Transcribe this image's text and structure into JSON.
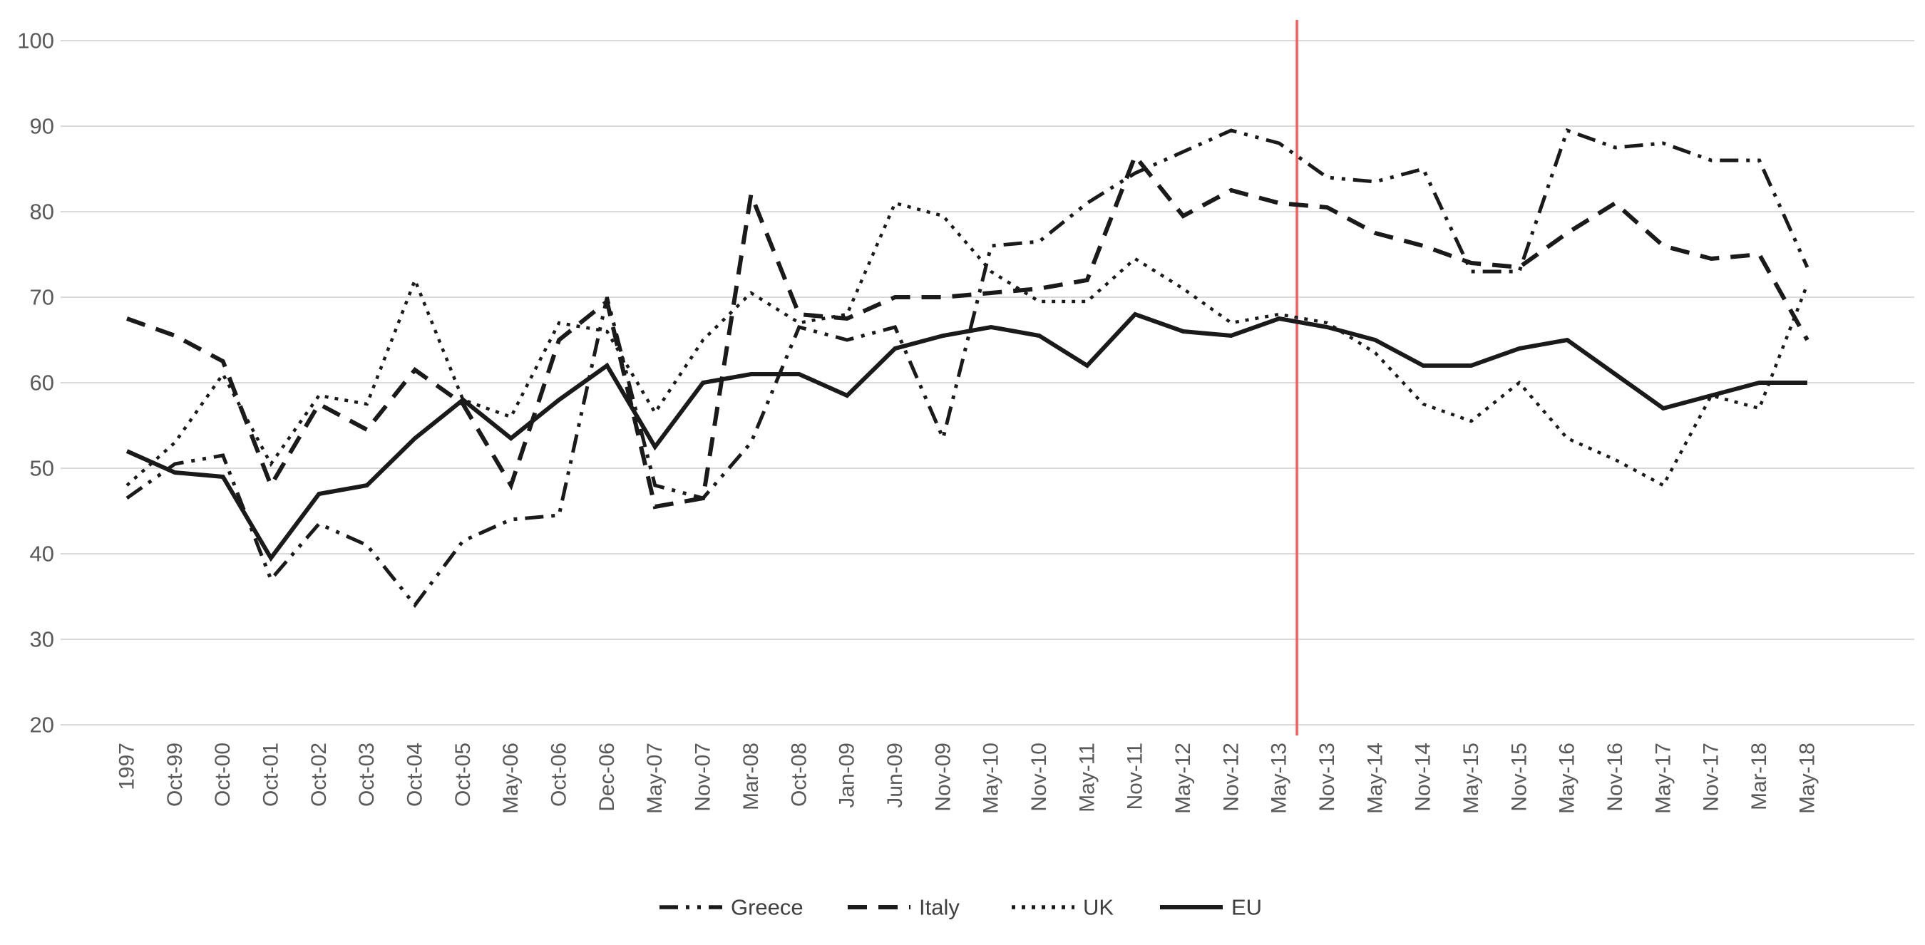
{
  "chart_data": {
    "type": "line",
    "title": "",
    "xlabel": "",
    "ylabel": "",
    "categories": [
      "1997",
      "Oct-99",
      "Oct-00",
      "Oct-01",
      "Oct-02",
      "Oct-03",
      "Oct-04",
      "Oct-05",
      "May-06",
      "Oct-06",
      "Dec-06",
      "May-07",
      "Nov-07",
      "Mar-08",
      "Oct-08",
      "Jan-09",
      "Jun-09",
      "Nov-09",
      "May-10",
      "Nov-10",
      "May-11",
      "Nov-11",
      "May-12",
      "Nov-12",
      "May-13",
      "Nov-13",
      "May-14",
      "Nov-14",
      "May-15",
      "Nov-15",
      "May-16",
      "Nov-16",
      "May-17",
      "Nov-17",
      "Mar-18",
      "May-18"
    ],
    "series": [
      {
        "name": "Greece",
        "style": "dash-dot-dot",
        "values": [
          46.5,
          50.5,
          51.5,
          37,
          43.5,
          41,
          34,
          41.5,
          44,
          44.5,
          70,
          48,
          46.5,
          53,
          66.5,
          65,
          66.5,
          53.5,
          76,
          76.5,
          81,
          84.5,
          87,
          89.5,
          88,
          84,
          83.5,
          85,
          73,
          73,
          89.5,
          87.5,
          88,
          86,
          86,
          73.5
        ]
      },
      {
        "name": "Italy",
        "style": "dashed",
        "values": [
          67.5,
          65.5,
          62.5,
          48,
          57.5,
          54.5,
          61.5,
          57.5,
          48,
          65,
          69.5,
          45.5,
          46.5,
          82,
          68,
          67.5,
          70,
          70,
          70.5,
          71,
          72,
          86.5,
          79.5,
          82.5,
          81,
          80.5,
          77.5,
          76,
          74,
          73.5,
          77.5,
          81,
          76,
          74.5,
          75,
          65
        ]
      },
      {
        "name": "UK",
        "style": "dotted",
        "values": [
          48,
          53,
          61,
          50.5,
          58.5,
          57.5,
          72,
          58,
          56,
          67,
          66,
          56.5,
          65,
          70.5,
          67,
          68,
          81,
          79.5,
          73,
          69.5,
          69.5,
          74.5,
          71,
          67,
          68,
          67,
          63.5,
          57.5,
          55.5,
          60,
          53.5,
          51,
          48,
          58.5,
          57,
          71.5
        ]
      },
      {
        "name": "EU",
        "style": "solid",
        "values": [
          52,
          49.5,
          49,
          39.5,
          47,
          48,
          53.5,
          58,
          53.5,
          58,
          62,
          52.5,
          60,
          61,
          61,
          58.5,
          64,
          65.5,
          66.5,
          65.5,
          62,
          68,
          66,
          65.5,
          67.5,
          66.5,
          65,
          62,
          62,
          64,
          65,
          61,
          57,
          58.5,
          60,
          60
        ]
      }
    ],
    "ylim": [
      20,
      100
    ],
    "yticks": [
      "20",
      "30",
      "40",
      "50",
      "60",
      "70",
      "80",
      "90",
      "100"
    ],
    "grid": "horizontal",
    "legend_position": "bottom",
    "legend_entries": [
      "Greece",
      "Italy",
      "UK",
      "EU"
    ],
    "line_color": "#1a1a1a",
    "gridline_color": "#d9d9d9",
    "axis_label_color": "#595959",
    "legend_text_color": "#404040",
    "event_line": {
      "color": "#ff5b5b",
      "between": [
        "May-13",
        "Nov-13"
      ],
      "index": 24.37
    }
  }
}
